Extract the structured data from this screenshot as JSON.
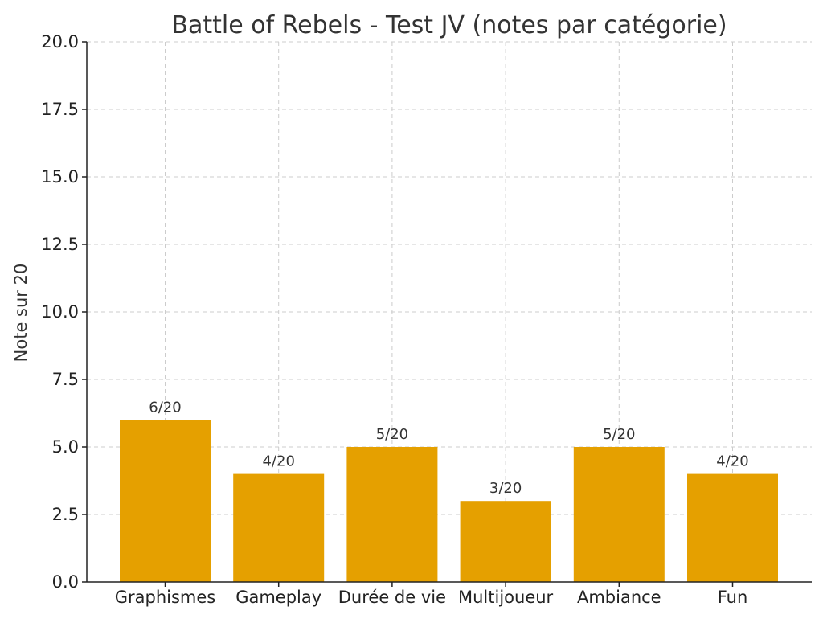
{
  "chart_data": {
    "type": "bar",
    "title": "Battle of Rebels - Test JV (notes par catégorie)",
    "xlabel": "",
    "ylabel": "Note sur 20",
    "categories": [
      "Graphismes",
      "Gameplay",
      "Durée de vie",
      "Multijoueur",
      "Ambiance",
      "Fun"
    ],
    "values": [
      6,
      4,
      5,
      3,
      5,
      4
    ],
    "data_labels": [
      "6/20",
      "4/20",
      "5/20",
      "3/20",
      "5/20",
      "4/20"
    ],
    "yticks": [
      "0.0",
      "2.5",
      "5.0",
      "7.5",
      "10.0",
      "12.5",
      "15.0",
      "17.5",
      "20.0"
    ],
    "ylim": [
      0,
      20
    ],
    "grid": true,
    "bar_color": "#E5A000"
  }
}
